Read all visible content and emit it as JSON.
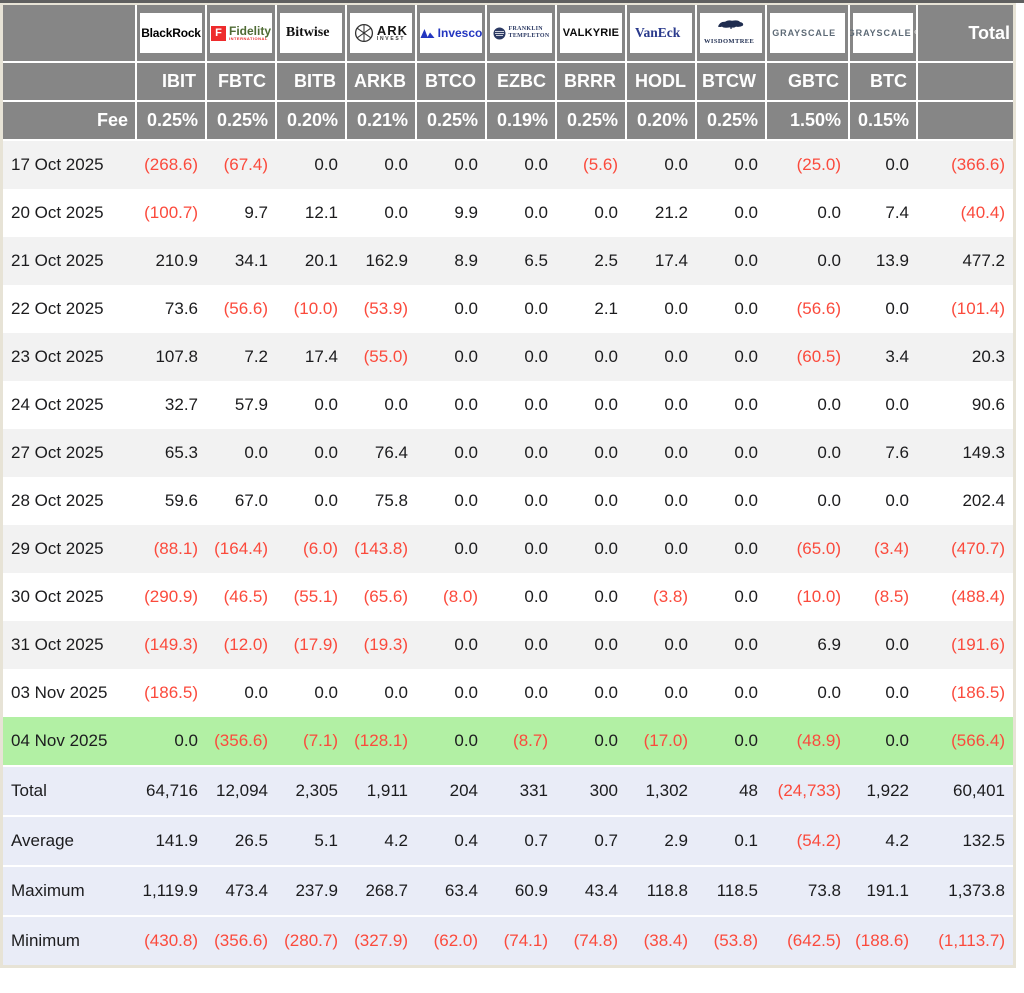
{
  "chart_data": {
    "type": "table",
    "corner_total_label": "Total",
    "fee_row_label": "Fee",
    "providers": [
      {
        "company": "BlackRock",
        "ticker": "IBIT",
        "fee": "0.25%",
        "logo": {
          "kind": "blackrock",
          "text": "BlackRock"
        }
      },
      {
        "company": "Fidelity International",
        "ticker": "FBTC",
        "fee": "0.25%",
        "logo": {
          "kind": "fidelity",
          "monogram": "F",
          "text": "Fidelity",
          "subtext": "INTERNATIONAL"
        }
      },
      {
        "company": "Bitwise",
        "ticker": "BITB",
        "fee": "0.20%",
        "logo": {
          "kind": "bitwise",
          "text": "Bitwise",
          "mark": "®"
        }
      },
      {
        "company": "ARK Invest",
        "ticker": "ARKB",
        "fee": "0.21%",
        "logo": {
          "kind": "ark",
          "text": "ARK",
          "subtext": "INVEST"
        }
      },
      {
        "company": "Invesco",
        "ticker": "BTCO",
        "fee": "0.25%",
        "logo": {
          "kind": "invesco",
          "text": "Invesco"
        }
      },
      {
        "company": "Franklin Templeton",
        "ticker": "EZBC",
        "fee": "0.19%",
        "logo": {
          "kind": "franklin",
          "text": "FRANKLIN",
          "subtext": "TEMPLETON"
        }
      },
      {
        "company": "Valkyrie",
        "ticker": "BRRR",
        "fee": "0.25%",
        "logo": {
          "kind": "valkyrie",
          "text": "VALKYRIE"
        }
      },
      {
        "company": "VanEck",
        "ticker": "HODL",
        "fee": "0.20%",
        "logo": {
          "kind": "vaneck",
          "text": "VanEck",
          "mark": "®"
        }
      },
      {
        "company": "WisdomTree",
        "ticker": "BTCW",
        "fee": "0.25%",
        "logo": {
          "kind": "wisdomtree",
          "text": "WISDOMTREE",
          "mark": "®"
        }
      },
      {
        "company": "Grayscale",
        "ticker": "GBTC",
        "fee": "1.50%",
        "logo": {
          "kind": "grayscale",
          "text": "GRAYSCALE",
          "mark": "®"
        }
      },
      {
        "company": "Grayscale",
        "ticker": "BTC",
        "fee": "0.15%",
        "logo": {
          "kind": "grayscale",
          "text": "GRAYSCALE",
          "mark": "®"
        }
      }
    ],
    "rows": [
      {
        "date": "17 Oct 2025",
        "values": [
          "(268.6)",
          "(67.4)",
          "0.0",
          "0.0",
          "0.0",
          "0.0",
          "(5.6)",
          "0.0",
          "0.0",
          "(25.0)",
          "0.0",
          "(366.6)"
        ],
        "highlight": false
      },
      {
        "date": "20 Oct 2025",
        "values": [
          "(100.7)",
          "9.7",
          "12.1",
          "0.0",
          "9.9",
          "0.0",
          "0.0",
          "21.2",
          "0.0",
          "0.0",
          "7.4",
          "(40.4)"
        ],
        "highlight": false
      },
      {
        "date": "21 Oct 2025",
        "values": [
          "210.9",
          "34.1",
          "20.1",
          "162.9",
          "8.9",
          "6.5",
          "2.5",
          "17.4",
          "0.0",
          "0.0",
          "13.9",
          "477.2"
        ],
        "highlight": false
      },
      {
        "date": "22 Oct 2025",
        "values": [
          "73.6",
          "(56.6)",
          "(10.0)",
          "(53.9)",
          "0.0",
          "0.0",
          "2.1",
          "0.0",
          "0.0",
          "(56.6)",
          "0.0",
          "(101.4)"
        ],
        "highlight": false
      },
      {
        "date": "23 Oct 2025",
        "values": [
          "107.8",
          "7.2",
          "17.4",
          "(55.0)",
          "0.0",
          "0.0",
          "0.0",
          "0.0",
          "0.0",
          "(60.5)",
          "3.4",
          "20.3"
        ],
        "highlight": false
      },
      {
        "date": "24 Oct 2025",
        "values": [
          "32.7",
          "57.9",
          "0.0",
          "0.0",
          "0.0",
          "0.0",
          "0.0",
          "0.0",
          "0.0",
          "0.0",
          "0.0",
          "90.6"
        ],
        "highlight": false
      },
      {
        "date": "27 Oct 2025",
        "values": [
          "65.3",
          "0.0",
          "0.0",
          "76.4",
          "0.0",
          "0.0",
          "0.0",
          "0.0",
          "0.0",
          "0.0",
          "7.6",
          "149.3"
        ],
        "highlight": false
      },
      {
        "date": "28 Oct 2025",
        "values": [
          "59.6",
          "67.0",
          "0.0",
          "75.8",
          "0.0",
          "0.0",
          "0.0",
          "0.0",
          "0.0",
          "0.0",
          "0.0",
          "202.4"
        ],
        "highlight": false
      },
      {
        "date": "29 Oct 2025",
        "values": [
          "(88.1)",
          "(164.4)",
          "(6.0)",
          "(143.8)",
          "0.0",
          "0.0",
          "0.0",
          "0.0",
          "0.0",
          "(65.0)",
          "(3.4)",
          "(470.7)"
        ],
        "highlight": false
      },
      {
        "date": "30 Oct 2025",
        "values": [
          "(290.9)",
          "(46.5)",
          "(55.1)",
          "(65.6)",
          "(8.0)",
          "0.0",
          "0.0",
          "(3.8)",
          "0.0",
          "(10.0)",
          "(8.5)",
          "(488.4)"
        ],
        "highlight": false
      },
      {
        "date": "31 Oct 2025",
        "values": [
          "(149.3)",
          "(12.0)",
          "(17.9)",
          "(19.3)",
          "0.0",
          "0.0",
          "0.0",
          "0.0",
          "0.0",
          "6.9",
          "0.0",
          "(191.6)"
        ],
        "highlight": false
      },
      {
        "date": "03 Nov 2025",
        "values": [
          "(186.5)",
          "0.0",
          "0.0",
          "0.0",
          "0.0",
          "0.0",
          "0.0",
          "0.0",
          "0.0",
          "0.0",
          "0.0",
          "(186.5)"
        ],
        "highlight": false
      },
      {
        "date": "04 Nov 2025",
        "values": [
          "0.0",
          "(356.6)",
          "(7.1)",
          "(128.1)",
          "0.0",
          "(8.7)",
          "0.0",
          "(17.0)",
          "0.0",
          "(48.9)",
          "0.0",
          "(566.4)"
        ],
        "highlight": true
      }
    ],
    "summary_rows": [
      {
        "label": "Total",
        "values": [
          "64,716",
          "12,094",
          "2,305",
          "1,911",
          "204",
          "331",
          "300",
          "1,302",
          "48",
          "(24,733)",
          "1,922",
          "60,401"
        ]
      },
      {
        "label": "Average",
        "values": [
          "141.9",
          "26.5",
          "5.1",
          "4.2",
          "0.4",
          "0.7",
          "0.7",
          "2.9",
          "0.1",
          "(54.2)",
          "4.2",
          "132.5"
        ]
      },
      {
        "label": "Maximum",
        "values": [
          "1,119.9",
          "473.4",
          "237.9",
          "268.7",
          "63.4",
          "60.9",
          "43.4",
          "118.8",
          "118.5",
          "73.8",
          "191.1",
          "1,373.8"
        ]
      },
      {
        "label": "Minimum",
        "values": [
          "(430.8)",
          "(356.6)",
          "(280.7)",
          "(327.9)",
          "(62.0)",
          "(74.1)",
          "(74.8)",
          "(38.4)",
          "(53.8)",
          "(642.5)",
          "(188.6)",
          "(1,113.7)"
        ]
      }
    ],
    "negative_format": "parentheses",
    "colors": {
      "header_bg": "#868686",
      "header_text": "#ffffff",
      "stripe_bg": "#f2f2f2",
      "highlight_row_bg": "#b2f0a4",
      "summary_bg": "#e9ecf7",
      "negative_text": "#fb4a3c",
      "body_text": "#1c1c1e",
      "frame_border": "#e7e3d6",
      "top_line": "#606060"
    }
  }
}
